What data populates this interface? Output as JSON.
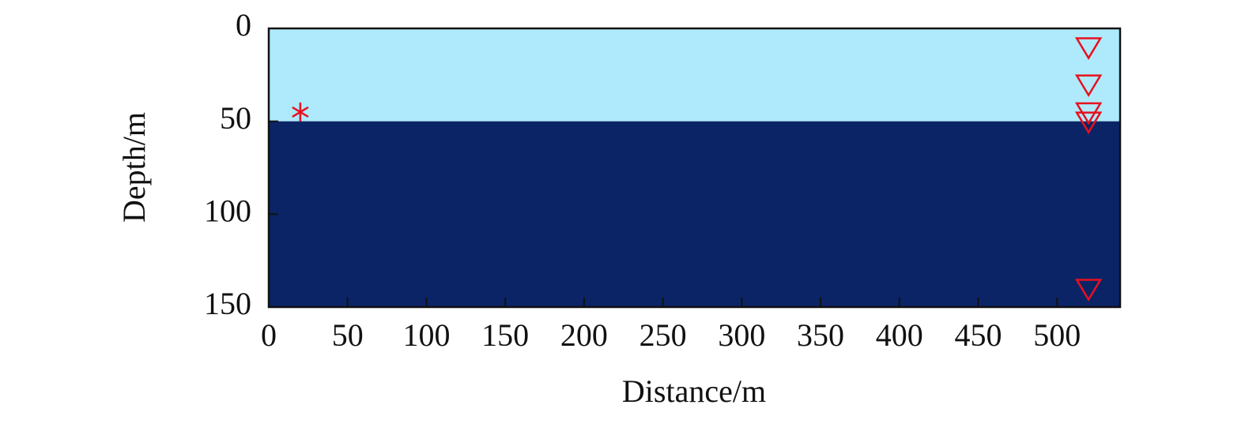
{
  "chart_data": {
    "type": "scatter",
    "xlabel": "Distance/m",
    "ylabel": "Depth/m",
    "xlim": [
      0,
      540
    ],
    "ylim": [
      0,
      150
    ],
    "y_inverted": true,
    "xticks": [
      0,
      50,
      100,
      150,
      200,
      250,
      300,
      350,
      400,
      450,
      500
    ],
    "yticks": [
      0,
      50,
      100,
      150
    ],
    "layers": [
      {
        "top": 0,
        "bottom": 50,
        "color": "#aeeafb"
      },
      {
        "top": 50,
        "bottom": 150,
        "color": "#0b2466"
      }
    ],
    "series": [
      {
        "marker": "star",
        "color": "#e8101e",
        "x": [
          20
        ],
        "y": [
          45
        ]
      },
      {
        "marker": "triangle-down",
        "color": "#e8101e",
        "x": [
          520,
          520,
          520,
          520,
          520
        ],
        "y": [
          10,
          30,
          45,
          50,
          140
        ]
      }
    ]
  }
}
